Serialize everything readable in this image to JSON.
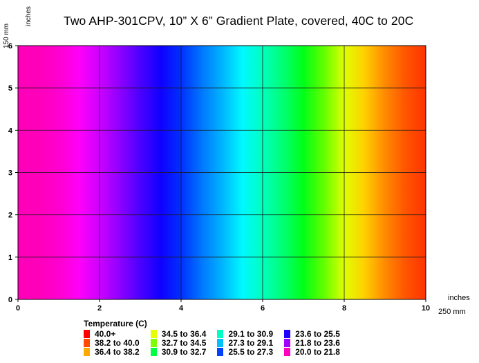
{
  "chart_data": {
    "type": "heatmap",
    "title": "Two AHP-301CPV, 10” X 6” Gradient Plate, covered, 40C to 20C",
    "xlabel": "inches",
    "xlabel_metric": "250 mm",
    "ylabel": "inches",
    "ylabel_metric": "150 mm",
    "xlim": [
      0,
      10
    ],
    "ylim": [
      0,
      6
    ],
    "x_ticks": [
      "0",
      "2",
      "4",
      "6",
      "8",
      "10"
    ],
    "y_ticks": [
      "0",
      "1",
      "2",
      "3",
      "4",
      "5",
      "6"
    ],
    "grid": true,
    "x": [
      0,
      0.5,
      1,
      1.5,
      2,
      2.5,
      3,
      3.5,
      4,
      4.5,
      5,
      5.5,
      6,
      6.5,
      7,
      7.5,
      8,
      8.5,
      9,
      9.5,
      10
    ],
    "values": [
      21.0,
      21.0,
      21.3,
      21.9,
      22.7,
      23.6,
      24.5,
      25.3,
      26.2,
      27.2,
      28.1,
      29.1,
      30.0,
      30.9,
      32.0,
      33.4,
      35.0,
      36.6,
      37.9,
      39.0,
      39.8
    ],
    "legend": {
      "title": "Temperature (C)",
      "items": [
        {
          "label": "40.0+",
          "color": "#ff0000"
        },
        {
          "label": "38.2 to 40.0",
          "color": "#ff4a00"
        },
        {
          "label": "36.4 to 38.2",
          "color": "#ffaa00"
        },
        {
          "label": "34.5 to 36.4",
          "color": "#e6ff00"
        },
        {
          "label": "32.7 to 34.5",
          "color": "#80ff00"
        },
        {
          "label": "30.9 to 32.7",
          "color": "#00ff40"
        },
        {
          "label": "29.1 to 30.9",
          "color": "#00ffc0"
        },
        {
          "label": "27.3 to 29.1",
          "color": "#00c0ff"
        },
        {
          "label": "25.5 to 27.3",
          "color": "#0040ff"
        },
        {
          "label": "23.6 to 25.5",
          "color": "#2000ff"
        },
        {
          "label": "21.8 to 23.6",
          "color": "#a000ff"
        },
        {
          "label": "20.0 to 21.8",
          "color": "#ff00c0"
        }
      ]
    }
  }
}
